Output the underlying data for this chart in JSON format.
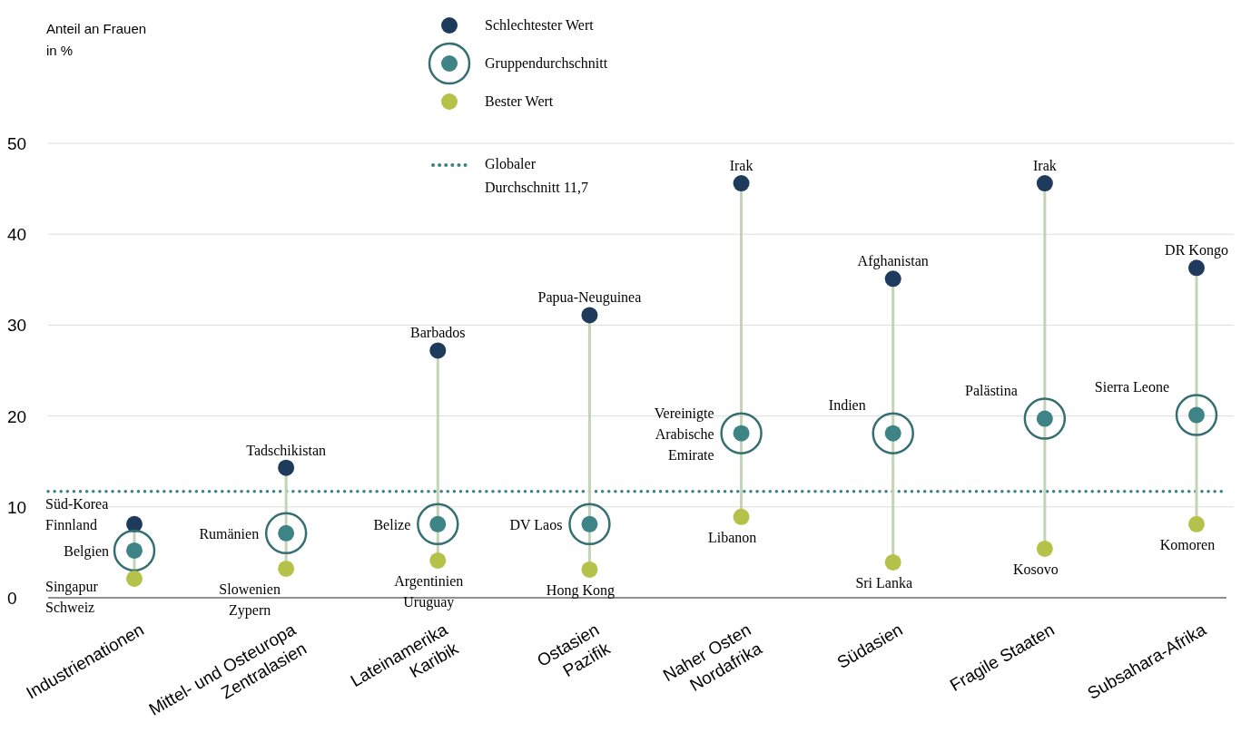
{
  "chart_data": {
    "type": "scatter",
    "categories": [
      "Industrienationen",
      "Mittel- und Osteuropa\nZentralasien",
      "Lateinamerika\nKaribik",
      "Ostasien\nPazifik",
      "Naher Osten\nNordafrika",
      "Südasien",
      "Fragile Staaten",
      "Subsahara-Afrika"
    ],
    "series": [
      {
        "name": "Schlechtester Wert",
        "color": "#1e3a5c",
        "values": [
          8.1,
          14.3,
          27.2,
          31.1,
          45.6,
          35.1,
          45.6,
          36.3
        ]
      },
      {
        "name": "Gruppendurchschnitt",
        "color": "#3e8385",
        "values": [
          5.2,
          7.1,
          8.1,
          8.1,
          18.1,
          18.1,
          19.7,
          20.1
        ]
      },
      {
        "name": "Bester Wert",
        "color": "#b4c24a",
        "values": [
          2.1,
          3.2,
          4.1,
          3.1,
          8.9,
          3.9,
          5.4,
          8.1
        ]
      }
    ],
    "ylim": [
      0,
      50
    ],
    "yticks": [
      0,
      10,
      20,
      30,
      40,
      50
    ],
    "grid": "y",
    "legend": "top",
    "marker": "circle",
    "ref_lines": [
      {
        "axis": "y",
        "value": 11.7,
        "label": "Globaler\nDurchschnitt 11,7",
        "color": "#3e8385",
        "line_style": "dotted"
      }
    ],
    "annotations": [
      "Anteil an Frauen in %",
      "Süd-Korea\nFinnland",
      "Belgien",
      "Singapur\nSchweiz",
      "Tadschikistan",
      "Rumänien",
      "Slowenien\nZypern",
      "Barbados",
      "Belize",
      "Argentinien\nUruguay",
      "Papua-Neuguinea",
      "DV Laos",
      "Hong Kong",
      "Irak",
      "Vereinigte\nArabische\nEmirate",
      "Libanon",
      "Afghanistan",
      "Indien",
      "Sri Lanka",
      "Irak",
      "Palästina",
      "Kosovo",
      "DR Kongo",
      "Sierra Leone",
      "Komoren"
    ]
  }
}
